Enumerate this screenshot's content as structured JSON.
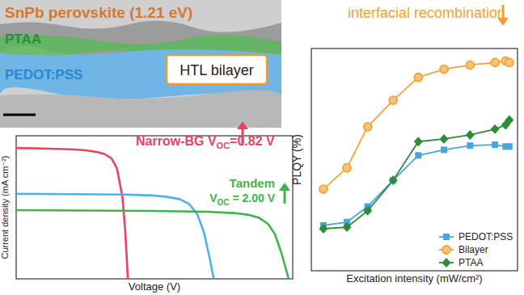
{
  "schematic": {
    "title": "SnPb perovskite (1.21 eV)",
    "layers": [
      "PTAA",
      "PEDOT:PSS"
    ],
    "label": "HTL bilayer"
  },
  "chart_data": [
    {
      "type": "line",
      "xlabel": "Voltage (V)",
      "ylabel": "Current density (mA cm⁻²)",
      "xlim": [
        0,
        2.03
      ],
      "ylim": [
        0,
        35
      ],
      "tick_labels": false,
      "annotations": [
        {
          "label": "Narrow-BG",
          "symbol": "V",
          "subscript": "OC",
          "text": "=0.82 V"
        },
        {
          "label": "Tandem",
          "symbol": "V",
          "subscript": "OC",
          "text": " = 2.00 V"
        }
      ],
      "series": [
        {
          "color": "#e8435f",
          "x": [
            0,
            0.2,
            0.4,
            0.5,
            0.6,
            0.65,
            0.7,
            0.74,
            0.78,
            0.8,
            0.82
          ],
          "values": [
            32,
            31.9,
            31.7,
            31.5,
            31.0,
            30.5,
            29.5,
            27,
            20,
            12,
            0
          ]
        },
        {
          "color": "#4fb0e8",
          "x": [
            0,
            0.4,
            0.8,
            1.0,
            1.1,
            1.2,
            1.27,
            1.33,
            1.38,
            1.42,
            1.45
          ],
          "values": [
            20.8,
            20.7,
            20.6,
            20.4,
            20.1,
            19.5,
            18.3,
            15.8,
            11.2,
            5.1,
            0
          ]
        },
        {
          "color": "#3cb54a",
          "x": [
            0,
            0.5,
            1.0,
            1.4,
            1.6,
            1.7,
            1.78,
            1.85,
            1.9,
            1.95,
            2.0
          ],
          "values": [
            16.8,
            16.7,
            16.6,
            16.4,
            16.1,
            15.7,
            15.0,
            13.4,
            10.9,
            6.0,
            0
          ]
        }
      ]
    },
    {
      "type": "line",
      "xlabel": "Excitation intensity (mW/cm²)",
      "ylabel": "PLQY (%)",
      "log": "x",
      "xlim": [
        1,
        1000
      ],
      "ylim": [
        0,
        10
      ],
      "tick_labels": false,
      "legend": "lower right",
      "annotations": [
        {
          "text": "interfacial recombination"
        }
      ],
      "x": [
        1.5,
        3.3,
        6.6,
        15.5,
        36,
        85,
        204,
        470,
        670,
        760
      ],
      "series": [
        {
          "name": "PEDOT:PSS",
          "color": "#45a6e0",
          "marker": "square",
          "values": [
            2.04,
            2.19,
            2.89,
            4.07,
            5.19,
            5.44,
            5.63,
            5.67,
            5.59,
            5.59
          ]
        },
        {
          "name": "Bilayer",
          "color": "#f5a030",
          "marker": "circle",
          "values": [
            3.67,
            4.63,
            6.48,
            7.67,
            8.7,
            9.07,
            9.26,
            9.37,
            9.44,
            9.37
          ]
        },
        {
          "name": "PTAA",
          "color": "#2e8b3a",
          "marker": "diamond",
          "values": [
            1.89,
            1.96,
            2.7,
            4.07,
            5.81,
            5.93,
            6.11,
            6.37,
            6.56,
            6.78
          ]
        }
      ]
    }
  ]
}
